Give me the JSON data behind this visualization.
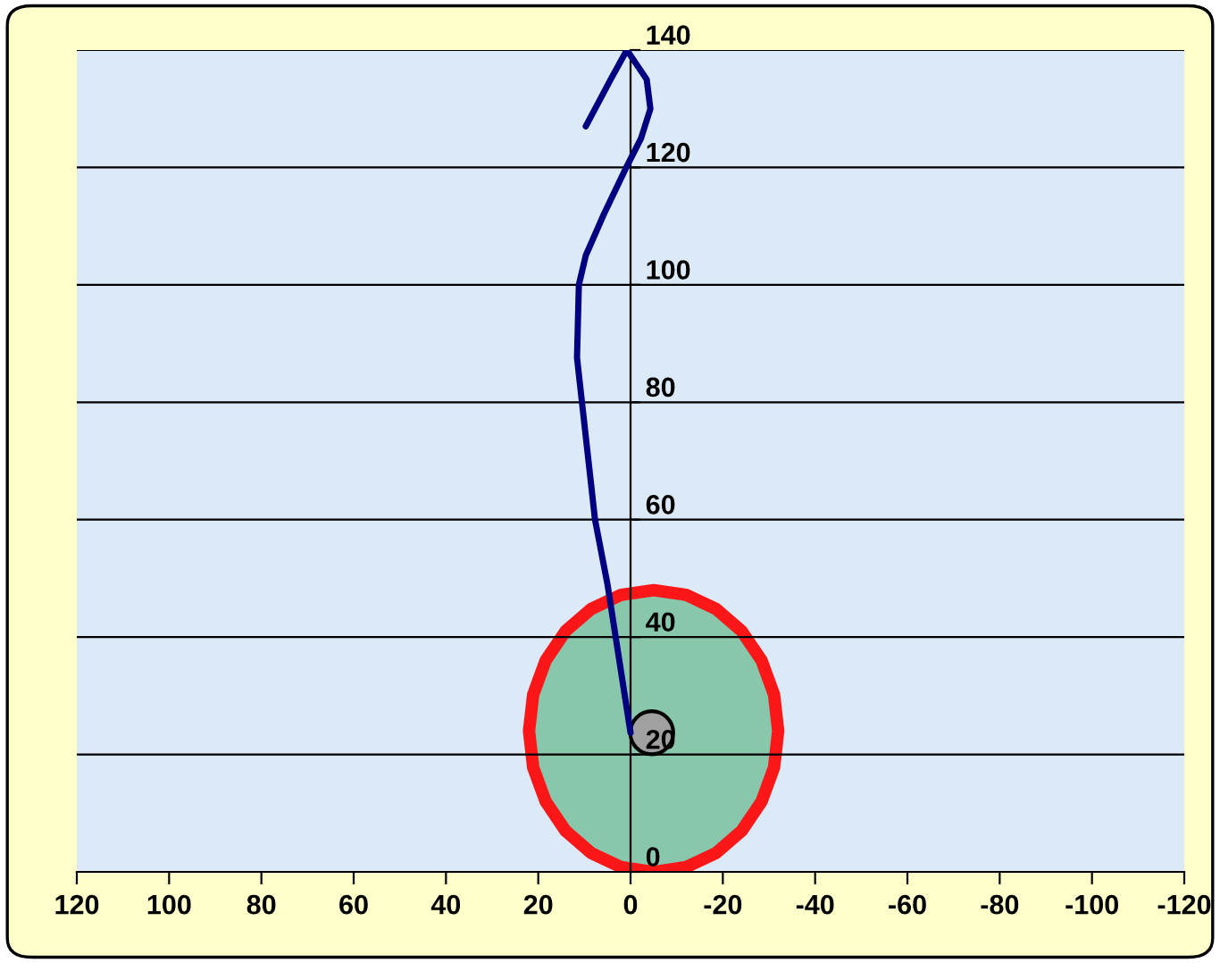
{
  "chart_data": {
    "type": "line",
    "series": [
      {
        "color": "#000080",
        "x": [
          0,
          5.0,
          7.7,
          11.6,
          11.2,
          9.7,
          5.8,
          0.8,
          -2.3,
          -4.3,
          -3.5,
          0.8,
          4.3,
          9.7
        ],
        "values": [
          23.7,
          49,
          60,
          87.6,
          100,
          105,
          112,
          120.2,
          125,
          130,
          135,
          140,
          135,
          127
        ]
      },
      {
        "type": "area",
        "color": "#ff0000",
        "x": [
          22,
          21.1,
          18.4,
          14.1,
          8.5,
          2.0,
          -5,
          -12.0,
          -18.5,
          -24.1,
          -28.4,
          -31.1,
          -32,
          -31.1,
          -28.4,
          -24.1,
          -18.5,
          -12.0,
          -5,
          2.0,
          8.5,
          14.1,
          18.4,
          21.1,
          22
        ],
        "values": [
          24,
          30.2,
          36,
          41,
          44.8,
          47.2,
          48,
          47.2,
          44.8,
          41,
          36,
          30.2,
          24,
          17.8,
          12,
          7,
          3.2,
          0.8,
          0,
          0.8,
          3.2,
          7,
          12,
          17.8,
          24
        ]
      },
      {
        "type": "scatter",
        "marker": "circle",
        "color": "#a0a0a0",
        "x": [
          -4.6
        ],
        "values": [
          23.7
        ]
      }
    ],
    "xlim": [
      120,
      -120
    ],
    "xticks": [
      120,
      100,
      80,
      60,
      40,
      20,
      0,
      -20,
      -40,
      -60,
      -80,
      -100,
      -120
    ],
    "ylim": [
      0,
      140
    ],
    "yticks": [
      0,
      20,
      40,
      60,
      80,
      100,
      120,
      140
    ],
    "grid": "y",
    "marker": "none",
    "line_style": "solid"
  }
}
